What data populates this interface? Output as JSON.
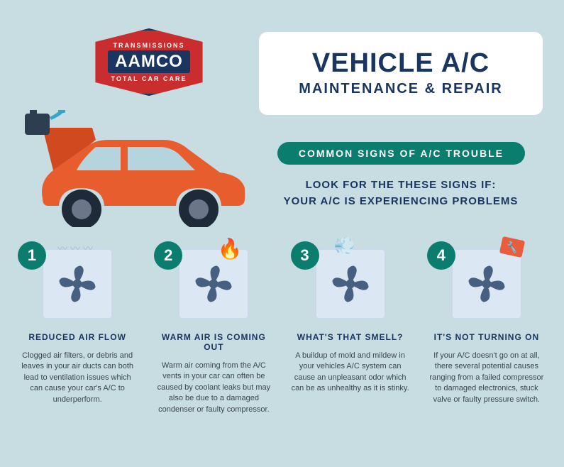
{
  "colors": {
    "background": "#c8dde2",
    "card_bg": "#ffffff",
    "title_color": "#1a3560",
    "banner_bg": "#0b7d6f",
    "banner_text": "#ffffff",
    "intro_color": "#1a3560",
    "badge_bg": "#0b7d6f",
    "badge_text": "#ffffff",
    "card_title_color": "#1a3560",
    "card_desc_color": "#3a4550",
    "logo_red": "#c92d2d",
    "logo_blue": "#1a3560",
    "car_orange": "#e85d2e",
    "car_dark": "#1f2a38",
    "fan_color": "#456080"
  },
  "typography": {
    "main_title_size": 38,
    "sub_title_size": 20,
    "banner_size": 14,
    "intro_size": 15,
    "badge_size": 22,
    "card_title_size": 12,
    "card_desc_size": 11
  },
  "logo": {
    "top": "TRANSMISSIONS",
    "main": "AAMCO",
    "bottom": "TOTAL CAR CARE"
  },
  "header": {
    "title": "VEHICLE A/C",
    "subtitle": "MAINTENANCE & REPAIR",
    "banner": "COMMON SIGNS OF A/C TROUBLE",
    "intro_line1": "LOOK FOR THE THESE SIGNS IF:",
    "intro_line2": "YOUR A/C IS EXPERIENCING PROBLEMS"
  },
  "cards": [
    {
      "num": "1",
      "title": "REDUCED AIR FLOW",
      "desc": "Clogged air filters, or debris and leaves in your air ducts can both lead to ventilation issues which can cause your car's A/C to underperform.",
      "effect": "steam"
    },
    {
      "num": "2",
      "title": "WARM AIR IS COMING OUT",
      "desc": "Warm air coming from the A/C vents in your car can often be caused by coolant leaks but may also be due to a damaged condenser or faulty compressor.",
      "effect": "flame"
    },
    {
      "num": "3",
      "title": "WHAT'S THAT SMELL?",
      "desc": "A buildup of mold and mildew in your vehicles A/C system can cause an unpleasant odor which can be as unhealthy as it is stinky.",
      "effect": "smoke"
    },
    {
      "num": "4",
      "title": "IT'S NOT TURNING ON",
      "desc": "If your A/C doesn't go on at all, there several potential causes ranging from a failed compressor to damaged electronics, stuck valve or faulty pressure switch.",
      "effect": "tag"
    }
  ]
}
